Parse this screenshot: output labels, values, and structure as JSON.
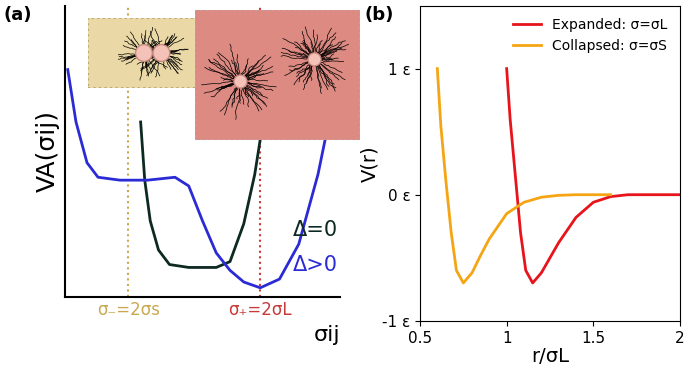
{
  "chart_data": [
    {
      "type": "line",
      "title": "(a)",
      "xlabel": "σij",
      "ylabel": "VA(σij)",
      "xlim": [
        0,
        10
      ],
      "ylim": [
        0,
        10
      ],
      "xticks": [
        {
          "value": 2.3,
          "label": "σ₋=2σs"
        },
        {
          "value": 7.1,
          "label": "σ₊=2σL"
        }
      ],
      "tick_labels": "x",
      "series": [
        {
          "name": "Δ=0",
          "color": "#0d2a22",
          "x": [
            2.75,
            2.9,
            3.1,
            3.4,
            3.8,
            4.5,
            5.5,
            6.0,
            6.5,
            6.9,
            7.2
          ],
          "values": [
            6.0,
            4.0,
            2.6,
            1.6,
            1.1,
            1.0,
            1.0,
            1.2,
            2.5,
            4.2,
            6.0
          ]
        },
        {
          "name": "Δ>0",
          "color": "#2b2bd6",
          "x": [
            0.1,
            0.4,
            0.8,
            1.2,
            2.0,
            3.0,
            4.0,
            4.5,
            5.0,
            5.5,
            6.0,
            6.5,
            7.1,
            7.8,
            8.5,
            9.2,
            9.7,
            10.0
          ],
          "values": [
            7.8,
            6.0,
            4.6,
            4.1,
            4.0,
            4.0,
            4.1,
            3.8,
            2.6,
            1.5,
            0.9,
            0.5,
            0.3,
            0.6,
            1.8,
            4.2,
            6.5,
            8.4
          ]
        }
      ]
    },
    {
      "type": "line",
      "title": "(b)",
      "xlabel": "r/σL",
      "ylabel": "V(r)",
      "xlim": [
        0.5,
        2
      ],
      "ylim": [
        -1,
        1.5
      ],
      "xticks": [
        0.5,
        1,
        1.5,
        2
      ],
      "yticks": [
        {
          "value": -1,
          "label": "-1 ε"
        },
        {
          "value": 0,
          "label": "0 ε"
        },
        {
          "value": 1,
          "label": "1 ε"
        }
      ],
      "legend": "upper right",
      "series": [
        {
          "name": "Expanded: σ=σL",
          "color": "#e8141c",
          "x": [
            1.0,
            1.02,
            1.05,
            1.08,
            1.11,
            1.15,
            1.2,
            1.25,
            1.3,
            1.4,
            1.5,
            1.6,
            1.7,
            2.0
          ],
          "values": [
            1.0,
            0.6,
            0.15,
            -0.3,
            -0.6,
            -0.7,
            -0.62,
            -0.5,
            -0.38,
            -0.18,
            -0.06,
            -0.015,
            0,
            0
          ]
        },
        {
          "name": "Collapsed: σ=σS",
          "color": "#f5a514",
          "x": [
            0.6,
            0.62,
            0.65,
            0.68,
            0.71,
            0.75,
            0.8,
            0.85,
            0.9,
            1.0,
            1.1,
            1.2,
            1.3,
            1.4,
            1.6
          ],
          "values": [
            1.0,
            0.55,
            0.1,
            -0.3,
            -0.6,
            -0.7,
            -0.62,
            -0.48,
            -0.35,
            -0.15,
            -0.06,
            -0.02,
            -0.005,
            0,
            0
          ]
        }
      ]
    }
  ]
}
